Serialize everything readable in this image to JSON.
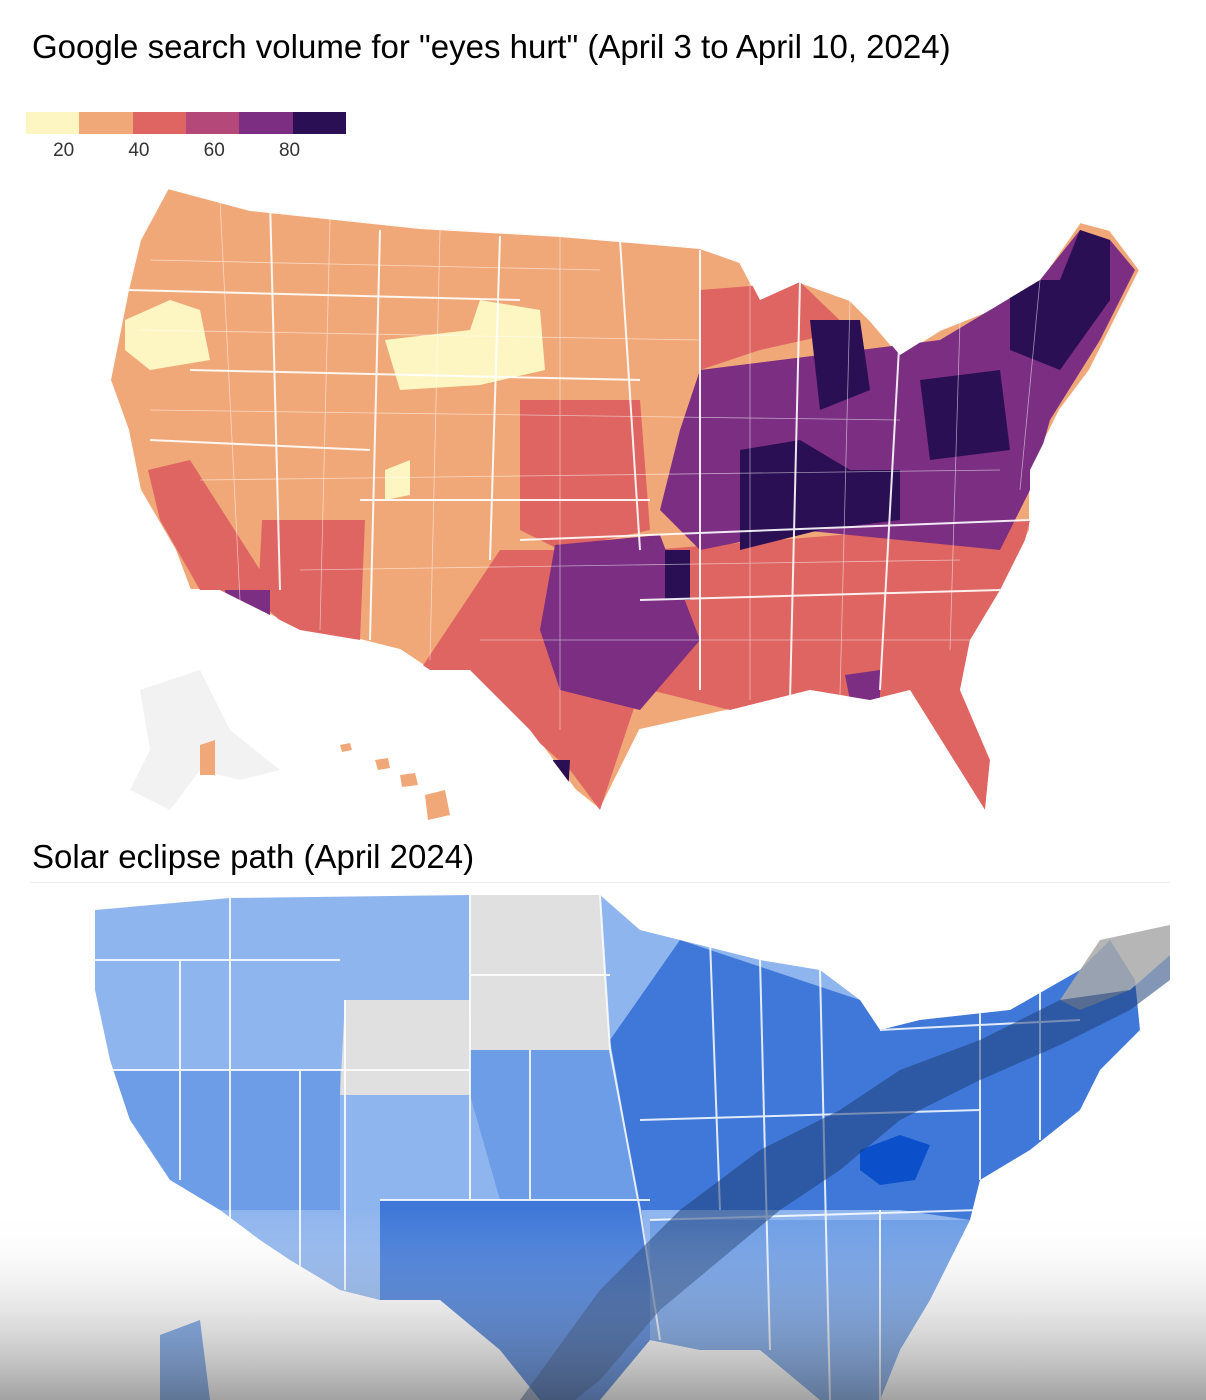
{
  "title_top": "Google search volume for \"eyes hurt\" (April 3 to April 10, 2024)",
  "title_bottom": "Solar eclipse path (April 2024)",
  "legend": {
    "ticks": [
      "20",
      "40",
      "60",
      "80"
    ],
    "tick_values": [
      20,
      40,
      60,
      80
    ],
    "colors": [
      "#fdf6c3",
      "#f1a878",
      "#de6561",
      "#b44878",
      "#7b2e82",
      "#2b0f54"
    ]
  },
  "colors": {
    "search_low": "#f1a878",
    "search_very_low": "#fdf6c3",
    "search_mid": "#de6561",
    "search_high": "#7b2e82",
    "search_highest": "#2b0f54",
    "eclipse_light": "#8fb5ee",
    "eclipse_mid": "#6c9de6",
    "eclipse_strong": "#3f78d8",
    "eclipse_peak": "#0b4fcb",
    "eclipse_none": "#e0e0e0",
    "eclipse_path": "#1f3f7a",
    "eclipse_path_outside": "#a9a9a9"
  }
}
